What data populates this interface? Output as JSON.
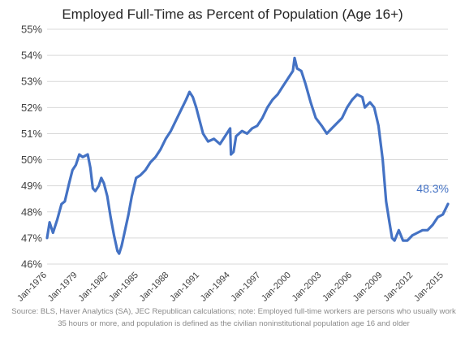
{
  "chart_data": {
    "type": "line",
    "title": "Employed Full-Time as Percent of Population (Age 16+)",
    "xlabel": "",
    "ylabel": "",
    "x_range": [
      "1976-01",
      "2015-06"
    ],
    "ylim": [
      46,
      55
    ],
    "y_ticks": [
      "46%",
      "47%",
      "48%",
      "49%",
      "50%",
      "51%",
      "52%",
      "53%",
      "54%",
      "55%"
    ],
    "x_ticks": [
      "Jan-1976",
      "Jan-1979",
      "Jan-1982",
      "Jan-1985",
      "Jan-1988",
      "Jan-1991",
      "Jan-1994",
      "Jan-1997",
      "Jan-2000",
      "Jan-2003",
      "Jan-2006",
      "Jan-2009",
      "Jan-2012",
      "Jan-2015"
    ],
    "grid": "horizontal",
    "legend": "none",
    "line_color": "#4472c4",
    "annotation": {
      "text": "48.3%",
      "x": "2015-06",
      "y": 48.3,
      "color": "#4472c4"
    },
    "series": [
      {
        "values": [
          [
            "1976-01",
            47.0
          ],
          [
            "1976-04",
            47.6
          ],
          [
            "1976-08",
            47.2
          ],
          [
            "1977-01",
            47.7
          ],
          [
            "1977-06",
            48.3
          ],
          [
            "1977-10",
            48.4
          ],
          [
            "1978-03",
            49.1
          ],
          [
            "1978-07",
            49.6
          ],
          [
            "1978-11",
            49.8
          ],
          [
            "1979-03",
            50.2
          ],
          [
            "1979-07",
            50.1
          ],
          [
            "1980-01",
            50.2
          ],
          [
            "1980-04",
            49.7
          ],
          [
            "1980-07",
            48.9
          ],
          [
            "1980-10",
            48.8
          ],
          [
            "1981-02",
            49.0
          ],
          [
            "1981-05",
            49.3
          ],
          [
            "1981-08",
            49.1
          ],
          [
            "1981-12",
            48.6
          ],
          [
            "1982-04",
            47.8
          ],
          [
            "1982-08",
            47.1
          ],
          [
            "1982-12",
            46.5
          ],
          [
            "1983-02",
            46.4
          ],
          [
            "1983-05",
            46.7
          ],
          [
            "1983-09",
            47.3
          ],
          [
            "1984-01",
            47.9
          ],
          [
            "1984-05",
            48.6
          ],
          [
            "1984-10",
            49.3
          ],
          [
            "1985-03",
            49.4
          ],
          [
            "1985-09",
            49.6
          ],
          [
            "1986-03",
            49.9
          ],
          [
            "1986-09",
            50.1
          ],
          [
            "1987-03",
            50.4
          ],
          [
            "1987-09",
            50.8
          ],
          [
            "1988-03",
            51.1
          ],
          [
            "1988-09",
            51.5
          ],
          [
            "1989-03",
            51.9
          ],
          [
            "1989-09",
            52.3
          ],
          [
            "1990-01",
            52.6
          ],
          [
            "1990-05",
            52.4
          ],
          [
            "1990-09",
            52.0
          ],
          [
            "1991-01",
            51.5
          ],
          [
            "1991-05",
            51.0
          ],
          [
            "1991-11",
            50.7
          ],
          [
            "1992-06",
            50.8
          ],
          [
            "1993-01",
            50.6
          ],
          [
            "1993-07",
            50.9
          ],
          [
            "1994-01",
            51.2
          ],
          [
            "1994-02",
            50.2
          ],
          [
            "1994-05",
            50.3
          ],
          [
            "1994-08",
            50.9
          ],
          [
            "1995-03",
            51.1
          ],
          [
            "1995-09",
            51.0
          ],
          [
            "1996-03",
            51.2
          ],
          [
            "1996-09",
            51.3
          ],
          [
            "1997-03",
            51.6
          ],
          [
            "1997-09",
            52.0
          ],
          [
            "1998-03",
            52.3
          ],
          [
            "1998-09",
            52.5
          ],
          [
            "1999-03",
            52.8
          ],
          [
            "1999-09",
            53.1
          ],
          [
            "2000-03",
            53.4
          ],
          [
            "2000-05",
            53.9
          ],
          [
            "2000-08",
            53.5
          ],
          [
            "2001-01",
            53.4
          ],
          [
            "2001-06",
            52.9
          ],
          [
            "2001-12",
            52.2
          ],
          [
            "2002-06",
            51.6
          ],
          [
            "2003-01",
            51.3
          ],
          [
            "2003-07",
            51.0
          ],
          [
            "2004-01",
            51.2
          ],
          [
            "2004-07",
            51.4
          ],
          [
            "2005-01",
            51.6
          ],
          [
            "2005-07",
            52.0
          ],
          [
            "2006-01",
            52.3
          ],
          [
            "2006-07",
            52.5
          ],
          [
            "2007-01",
            52.4
          ],
          [
            "2007-04",
            52.0
          ],
          [
            "2007-10",
            52.2
          ],
          [
            "2008-03",
            52.0
          ],
          [
            "2008-08",
            51.3
          ],
          [
            "2009-01",
            50.0
          ],
          [
            "2009-05",
            48.4
          ],
          [
            "2009-09",
            47.6
          ],
          [
            "2009-12",
            47.0
          ],
          [
            "2010-03",
            46.9
          ],
          [
            "2010-08",
            47.3
          ],
          [
            "2011-01",
            46.9
          ],
          [
            "2011-06",
            46.9
          ],
          [
            "2011-12",
            47.1
          ],
          [
            "2012-06",
            47.2
          ],
          [
            "2012-12",
            47.3
          ],
          [
            "2013-06",
            47.3
          ],
          [
            "2013-12",
            47.5
          ],
          [
            "2014-06",
            47.8
          ],
          [
            "2014-12",
            47.9
          ],
          [
            "2015-06",
            48.3
          ]
        ]
      }
    ]
  },
  "source_note": "Source: BLS, Haver Analytics (SA), JEC Republican calculations; note: Employed full-time workers are persons who usually work 35 hours or more, and population is  defined as the civilian noninstitutional population age 16 and older"
}
